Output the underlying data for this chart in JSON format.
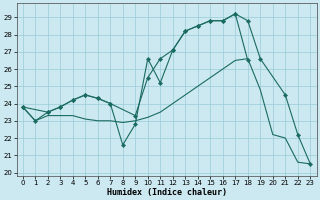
{
  "xlabel": "Humidex (Indice chaleur)",
  "bg_color": "#cce8f0",
  "grid_color": "#99ccd9",
  "line_color": "#1a6b60",
  "xlim": [
    -0.5,
    23.5
  ],
  "ylim": [
    19.8,
    29.8
  ],
  "yticks": [
    20,
    21,
    22,
    23,
    24,
    25,
    26,
    27,
    28,
    29
  ],
  "xticks": [
    0,
    1,
    2,
    3,
    4,
    5,
    6,
    7,
    8,
    9,
    10,
    11,
    12,
    13,
    14,
    15,
    16,
    17,
    18,
    19,
    20,
    21,
    22,
    23
  ],
  "series1_x": [
    0,
    1,
    2,
    3,
    4,
    5,
    6,
    7,
    8,
    9,
    10,
    11,
    12,
    13,
    14,
    15,
    16,
    17,
    18
  ],
  "series1_y": [
    23.8,
    23.0,
    23.5,
    23.8,
    24.2,
    24.5,
    24.3,
    24.0,
    21.6,
    22.8,
    26.6,
    25.2,
    27.1,
    28.2,
    28.5,
    28.8,
    28.8,
    29.2,
    26.5
  ],
  "series2_x": [
    0,
    1,
    2,
    3,
    4,
    5,
    6,
    7,
    8,
    9,
    10,
    11,
    12,
    13,
    14,
    15,
    16,
    17,
    18,
    19,
    20,
    21,
    22,
    23
  ],
  "series2_y": [
    23.8,
    23.0,
    23.3,
    23.3,
    23.3,
    23.1,
    23.0,
    23.0,
    22.9,
    23.0,
    23.2,
    23.5,
    24.0,
    24.5,
    25.0,
    25.5,
    26.0,
    26.5,
    26.6,
    24.8,
    22.2,
    22.0,
    20.6,
    20.5
  ],
  "series3_x": [
    0,
    2,
    3,
    4,
    5,
    6,
    7,
    9,
    10,
    11,
    12,
    13,
    14,
    15,
    16,
    17,
    18,
    19,
    21,
    22,
    23
  ],
  "series3_y": [
    23.8,
    23.5,
    23.8,
    24.2,
    24.5,
    24.3,
    24.0,
    23.3,
    25.5,
    26.6,
    27.1,
    28.2,
    28.5,
    28.8,
    28.8,
    29.2,
    28.8,
    26.6,
    24.5,
    22.2,
    20.5
  ]
}
